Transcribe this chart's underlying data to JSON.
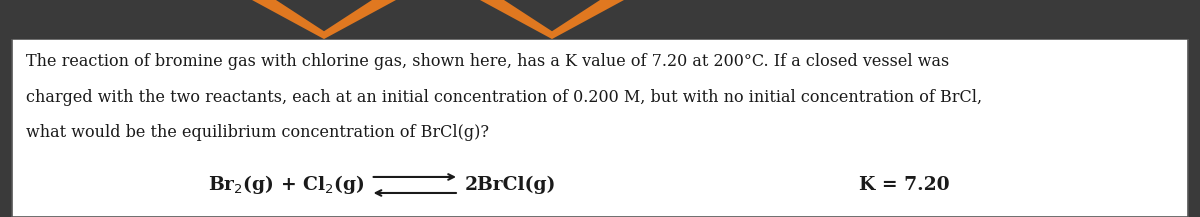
{
  "background_color": "#ffffff",
  "outer_bg_color": "#3a3a3a",
  "border_color": "#555555",
  "paragraph_text": "The reaction of bromine gas with chlorine gas, shown here, has a K⁣ value of 7.20 at 200°C. If a closed vessel was\ncharged with the two reactants, each at an initial concentration of 0.200 M, but with no initial concentration of BrCl,\nwhat would be the equilibrium concentration of BrCl(g)?",
  "reaction_left": "Br₂(g) + Cl₂(g)",
  "reaction_right": "2BrCl(g)",
  "k_value": "K = 7.20",
  "para_fontsize": 11.5,
  "reaction_fontsize": 13.5,
  "k_fontsize": 13.5,
  "text_color": "#1a1a1a",
  "figsize": [
    12.0,
    2.17
  ],
  "dpi": 100
}
